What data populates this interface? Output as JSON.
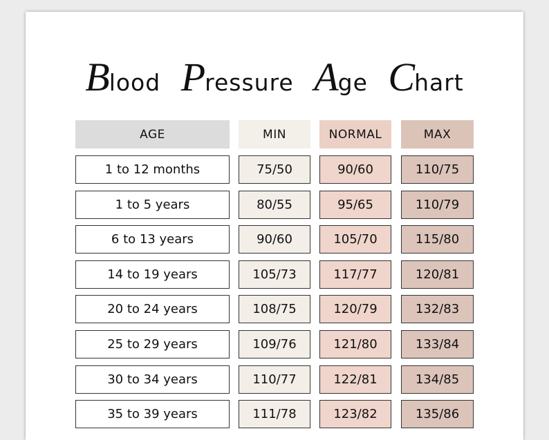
{
  "title": "Blood Pressure Age Chart",
  "table": {
    "header": [
      "AGE",
      "MIN",
      "NORMAL",
      "MAX"
    ],
    "rows": [
      [
        "1 to 12 months",
        "75/50",
        "90/60",
        "110/75"
      ],
      [
        "1 to 5 years",
        "80/55",
        "95/65",
        "110/79"
      ],
      [
        "6 to 13 years",
        "90/60",
        "105/70",
        "115/80"
      ],
      [
        "14 to 19 years",
        "105/73",
        "117/77",
        "120/81"
      ],
      [
        "20 to 24 years",
        "108/75",
        "120/79",
        "132/83"
      ],
      [
        "25 to 29 years",
        "109/76",
        "121/80",
        "133/84"
      ],
      [
        "30 to 34 years",
        "110/77",
        "122/81",
        "134/85"
      ],
      [
        "35 to 39 years",
        "111/78",
        "123/82",
        "135/86"
      ]
    ]
  }
}
